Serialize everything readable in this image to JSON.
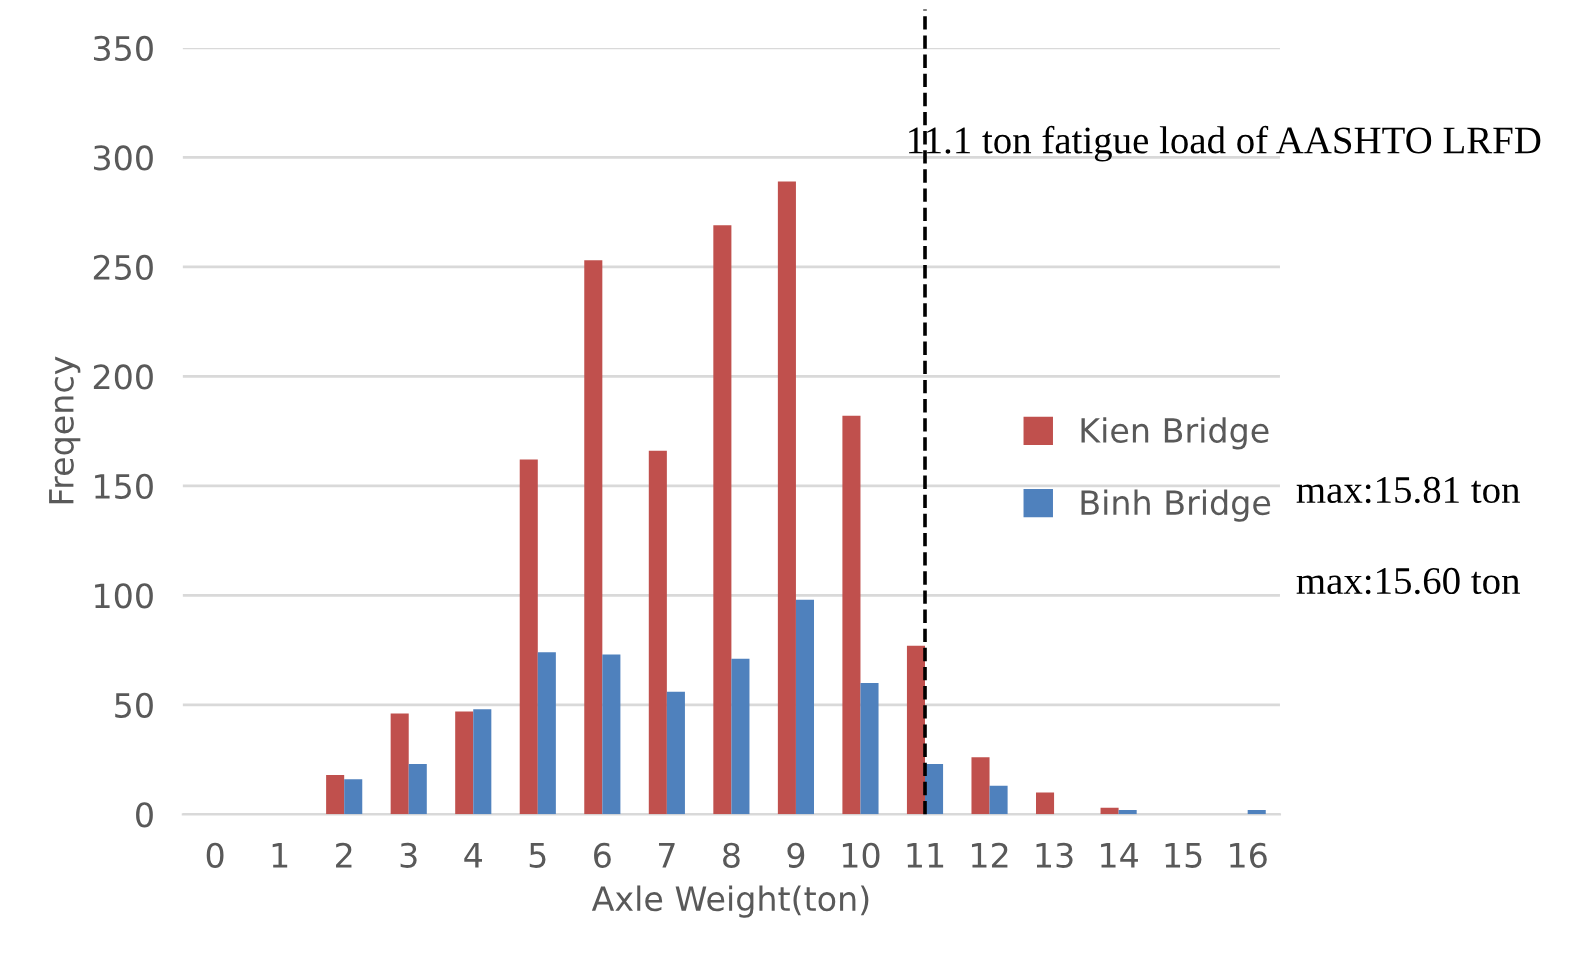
{
  "chart_data": {
    "type": "bar",
    "xlabel": "Axle Weight(ton)",
    "ylabel": "Freqency",
    "categories": [
      "0",
      "1",
      "2",
      "3",
      "4",
      "5",
      "6",
      "7",
      "8",
      "9",
      "10",
      "11",
      "12",
      "13",
      "14",
      "15",
      "16"
    ],
    "series": [
      {
        "name": "Kien Bridge",
        "color": "#c0504d",
        "values": [
          0,
          0,
          18,
          46,
          47,
          162,
          253,
          166,
          269,
          289,
          182,
          77,
          26,
          10,
          3,
          0,
          0
        ]
      },
      {
        "name": "Binh Bridge",
        "color": "#4f81bd",
        "values": [
          0,
          0,
          16,
          23,
          48,
          74,
          73,
          56,
          71,
          98,
          60,
          23,
          13,
          0,
          2,
          0,
          2
        ]
      }
    ],
    "ylim": [
      0,
      350
    ],
    "yticks": [
      0,
      50,
      100,
      150,
      200,
      250,
      300,
      350
    ],
    "grid": "y",
    "legend": "right",
    "ref_lines": [
      {
        "axis": "x",
        "value": "11",
        "label": "11.1 ton fatigue load of AASHTO LRFD",
        "color": "#000000",
        "line_style": "dashed"
      }
    ],
    "annotations": [
      "max:15.81 ton",
      "max:15.60 ton"
    ]
  }
}
